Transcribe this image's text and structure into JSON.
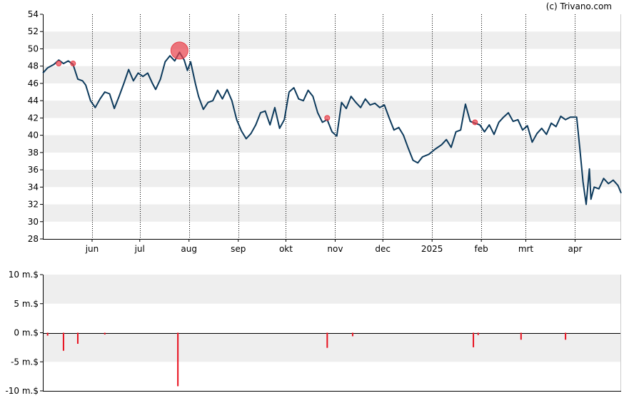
{
  "credit": "(c) Trivano.com",
  "colors": {
    "price_line": "#0d3a5c",
    "band": "#eeeeee",
    "trade_marker": "#e8404a",
    "volume_bar": "#e8101e",
    "axis": "#000000",
    "vgrid": "#000000"
  },
  "chart_data": [
    {
      "type": "line",
      "title": "",
      "xlabel": "",
      "ylabel": "",
      "ylim": [
        28,
        54
      ],
      "yticks": [
        28,
        30,
        32,
        34,
        36,
        38,
        40,
        42,
        44,
        46,
        48,
        50,
        52,
        54
      ],
      "ytick_labels": [
        "28",
        "30",
        "32",
        "34",
        "36",
        "38",
        "40",
        "42",
        "44",
        "46",
        "48",
        "50",
        "52",
        "54"
      ],
      "grid": "alternating horizontal bands, dotted vertical lines at month starts",
      "xlim": [
        "2024-05-01",
        "2025-04-30"
      ],
      "xticks": [
        {
          "date": "2024-06-01",
          "label": "jun"
        },
        {
          "date": "2024-07-01",
          "label": "jul"
        },
        {
          "date": "2024-08-01",
          "label": "aug"
        },
        {
          "date": "2024-09-01",
          "label": "sep"
        },
        {
          "date": "2024-10-01",
          "label": "okt"
        },
        {
          "date": "2024-11-01",
          "label": "nov"
        },
        {
          "date": "2024-12-01",
          "label": "dec"
        },
        {
          "date": "2025-01-01",
          "label": "2025"
        },
        {
          "date": "2025-02-01",
          "label": "feb"
        },
        {
          "date": "2025-03-01",
          "label": "mrt"
        },
        {
          "date": "2025-04-01",
          "label": "apr"
        }
      ],
      "series": [
        {
          "values": [
            [
              "2024-05-01",
              47.2
            ],
            [
              "2024-05-04",
              47.8
            ],
            [
              "2024-05-08",
              48.2
            ],
            [
              "2024-05-11",
              48.7
            ],
            [
              "2024-05-14",
              48.3
            ],
            [
              "2024-05-17",
              48.6
            ],
            [
              "2024-05-20",
              48.2
            ],
            [
              "2024-05-23",
              46.5
            ],
            [
              "2024-05-26",
              46.3
            ],
            [
              "2024-05-28",
              45.8
            ],
            [
              "2024-05-31",
              44.0
            ],
            [
              "2024-06-03",
              43.2
            ],
            [
              "2024-06-06",
              44.2
            ],
            [
              "2024-06-09",
              45.0
            ],
            [
              "2024-06-12",
              44.8
            ],
            [
              "2024-06-15",
              43.1
            ],
            [
              "2024-06-18",
              44.5
            ],
            [
              "2024-06-21",
              46.0
            ],
            [
              "2024-06-24",
              47.6
            ],
            [
              "2024-06-27",
              46.3
            ],
            [
              "2024-06-30",
              47.2
            ],
            [
              "2024-07-03",
              46.8
            ],
            [
              "2024-07-06",
              47.2
            ],
            [
              "2024-07-09",
              46.0
            ],
            [
              "2024-07-11",
              45.3
            ],
            [
              "2024-07-14",
              46.5
            ],
            [
              "2024-07-17",
              48.5
            ],
            [
              "2024-07-20",
              49.2
            ],
            [
              "2024-07-23",
              48.6
            ],
            [
              "2024-07-26",
              49.6
            ],
            [
              "2024-07-29",
              48.7
            ],
            [
              "2024-07-31",
              47.5
            ],
            [
              "2024-08-02",
              48.5
            ],
            [
              "2024-08-05",
              46.0
            ],
            [
              "2024-08-07",
              44.5
            ],
            [
              "2024-08-10",
              43.0
            ],
            [
              "2024-08-13",
              43.8
            ],
            [
              "2024-08-16",
              44.0
            ],
            [
              "2024-08-19",
              45.2
            ],
            [
              "2024-08-22",
              44.2
            ],
            [
              "2024-08-25",
              45.3
            ],
            [
              "2024-08-28",
              44.0
            ],
            [
              "2024-08-31",
              41.8
            ],
            [
              "2024-09-03",
              40.5
            ],
            [
              "2024-09-06",
              39.6
            ],
            [
              "2024-09-09",
              40.2
            ],
            [
              "2024-09-12",
              41.2
            ],
            [
              "2024-09-15",
              42.6
            ],
            [
              "2024-09-18",
              42.8
            ],
            [
              "2024-09-21",
              41.2
            ],
            [
              "2024-09-24",
              43.2
            ],
            [
              "2024-09-27",
              40.8
            ],
            [
              "2024-09-30",
              41.8
            ],
            [
              "2024-10-03",
              45.0
            ],
            [
              "2024-10-06",
              45.5
            ],
            [
              "2024-10-09",
              44.2
            ],
            [
              "2024-10-12",
              44.0
            ],
            [
              "2024-10-15",
              45.2
            ],
            [
              "2024-10-18",
              44.5
            ],
            [
              "2024-10-21",
              42.6
            ],
            [
              "2024-10-24",
              41.5
            ],
            [
              "2024-10-27",
              41.8
            ],
            [
              "2024-10-30",
              40.4
            ],
            [
              "2024-11-02",
              39.9
            ],
            [
              "2024-11-05",
              43.8
            ],
            [
              "2024-11-08",
              43.1
            ],
            [
              "2024-11-11",
              44.5
            ],
            [
              "2024-11-14",
              43.8
            ],
            [
              "2024-11-17",
              43.2
            ],
            [
              "2024-11-20",
              44.2
            ],
            [
              "2024-11-23",
              43.5
            ],
            [
              "2024-11-26",
              43.7
            ],
            [
              "2024-11-29",
              43.2
            ],
            [
              "2024-12-02",
              43.5
            ],
            [
              "2024-12-05",
              42.0
            ],
            [
              "2024-12-08",
              40.6
            ],
            [
              "2024-12-11",
              40.9
            ],
            [
              "2024-12-14",
              40.0
            ],
            [
              "2024-12-17",
              38.5
            ],
            [
              "2024-12-20",
              37.1
            ],
            [
              "2024-12-23",
              36.8
            ],
            [
              "2024-12-26",
              37.5
            ],
            [
              "2024-12-30",
              37.8
            ],
            [
              "2025-01-03",
              38.4
            ],
            [
              "2025-01-07",
              38.9
            ],
            [
              "2025-01-10",
              39.5
            ],
            [
              "2025-01-13",
              38.6
            ],
            [
              "2025-01-16",
              40.4
            ],
            [
              "2025-01-19",
              40.6
            ],
            [
              "2025-01-22",
              43.6
            ],
            [
              "2025-01-25",
              41.6
            ],
            [
              "2025-01-28",
              41.4
            ],
            [
              "2025-01-31",
              41.2
            ],
            [
              "2025-02-03",
              40.4
            ],
            [
              "2025-02-06",
              41.2
            ],
            [
              "2025-02-09",
              40.1
            ],
            [
              "2025-02-12",
              41.5
            ],
            [
              "2025-02-15",
              42.1
            ],
            [
              "2025-02-18",
              42.6
            ],
            [
              "2025-02-21",
              41.6
            ],
            [
              "2025-02-24",
              41.8
            ],
            [
              "2025-02-27",
              40.6
            ],
            [
              "2025-03-02",
              41.1
            ],
            [
              "2025-03-05",
              39.2
            ],
            [
              "2025-03-08",
              40.2
            ],
            [
              "2025-03-11",
              40.8
            ],
            [
              "2025-03-14",
              40.1
            ],
            [
              "2025-03-17",
              41.4
            ],
            [
              "2025-03-20",
              41.0
            ],
            [
              "2025-03-23",
              42.2
            ],
            [
              "2025-03-26",
              41.8
            ],
            [
              "2025-03-29",
              42.1
            ],
            [
              "2025-04-02",
              42.1
            ],
            [
              "2025-04-04",
              38.5
            ],
            [
              "2025-04-06",
              34.6
            ],
            [
              "2025-04-08",
              32.0
            ],
            [
              "2025-04-10",
              36.1
            ],
            [
              "2025-04-11",
              32.6
            ],
            [
              "2025-04-13",
              34.0
            ],
            [
              "2025-04-16",
              33.8
            ],
            [
              "2025-04-19",
              35.0
            ],
            [
              "2025-04-22",
              34.4
            ],
            [
              "2025-04-25",
              34.8
            ],
            [
              "2025-04-28",
              34.2
            ],
            [
              "2025-04-30",
              33.3
            ]
          ]
        }
      ],
      "markers": [
        {
          "date": "2024-05-11",
          "value": 48.3,
          "size": "small"
        },
        {
          "date": "2024-05-20",
          "value": 48.3,
          "size": "small"
        },
        {
          "date": "2024-07-26",
          "value": 49.8,
          "size": "large"
        },
        {
          "date": "2024-10-27",
          "value": 42.0,
          "size": "small"
        },
        {
          "date": "2025-01-28",
          "value": 41.5,
          "size": "small"
        }
      ]
    },
    {
      "type": "bar",
      "title": "",
      "xlabel": "",
      "ylabel": "",
      "ylim": [
        -10,
        10
      ],
      "yticks": [
        10,
        5,
        0,
        -5,
        -10
      ],
      "ytick_labels": [
        "10 m.$",
        "5 m.$",
        "0 m.$",
        "-5 m.$",
        "-10 m.$"
      ],
      "grid": "alternating horizontal bands",
      "xlim": [
        "2024-05-01",
        "2025-04-30"
      ],
      "values": [
        [
          "2024-05-04",
          -0.5
        ],
        [
          "2024-05-14",
          -3.1
        ],
        [
          "2024-05-23",
          -1.9
        ],
        [
          "2024-06-09",
          -0.3
        ],
        [
          "2024-07-25",
          -9.2
        ],
        [
          "2024-10-27",
          -2.6
        ],
        [
          "2024-11-12",
          -0.6
        ],
        [
          "2025-01-27",
          -2.5
        ],
        [
          "2025-01-30",
          -0.4
        ],
        [
          "2025-02-26",
          -1.2
        ],
        [
          "2025-03-26",
          -1.2
        ]
      ]
    }
  ]
}
